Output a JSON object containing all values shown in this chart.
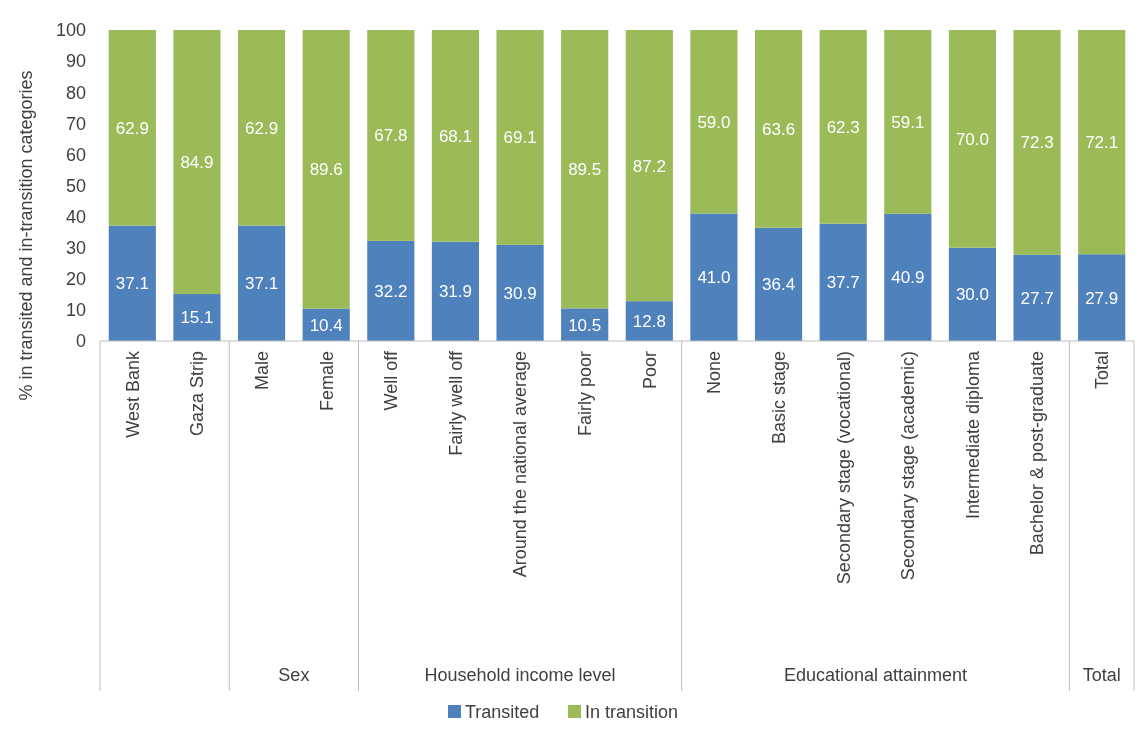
{
  "chart_data": {
    "type": "bar",
    "stacked": true,
    "ylabel": "% in transited and in-transition categories",
    "categories": [
      "West Bank",
      "Gaza Strip",
      "Male",
      "Female",
      "Well off",
      "Fairly well off",
      "Around the national average",
      "Fairly poor",
      "Poor",
      "None",
      "Basic stage",
      "Secondary stage (vocational)",
      "Secondary stage (academic)",
      "Intermediate diploma",
      "Bachelor & post-graduate",
      "Total"
    ],
    "series": [
      {
        "name": "Transited",
        "color": "#4f81bd",
        "values": [
          37.1,
          15.1,
          37.1,
          10.4,
          32.2,
          31.9,
          30.9,
          10.5,
          12.8,
          41.0,
          36.4,
          37.7,
          40.9,
          30.0,
          27.7,
          27.9
        ],
        "value_labels": [
          "37.1",
          "15.1",
          "37.1",
          "10.4",
          "32.2",
          "31.9",
          "30.9",
          "10.5",
          "12.8",
          "41.0",
          "36.4",
          "37.7",
          "40.9",
          "30.0",
          "27.7",
          "27.9"
        ]
      },
      {
        "name": "In transition",
        "color": "#9bbb59",
        "values": [
          62.9,
          84.9,
          62.9,
          89.6,
          67.8,
          68.1,
          69.1,
          89.5,
          87.2,
          59.0,
          63.6,
          62.3,
          59.1,
          70.0,
          72.3,
          72.1
        ],
        "value_labels": [
          "62.9",
          "84.9",
          "62.9",
          "89.6",
          "67.8",
          "68.1",
          "69.1",
          "89.5",
          "87.2",
          "59.0",
          "63.6",
          "62.3",
          "59.1",
          "70.0",
          "72.3",
          "72.1"
        ]
      }
    ],
    "ylim": [
      0,
      100
    ],
    "yticks": [
      0,
      10,
      20,
      30,
      40,
      50,
      60,
      70,
      80,
      90,
      100
    ],
    "grid": false,
    "legend": "bottom",
    "annotations": [
      "Sex",
      "Household income level",
      "Educational attainment",
      "Total"
    ]
  }
}
